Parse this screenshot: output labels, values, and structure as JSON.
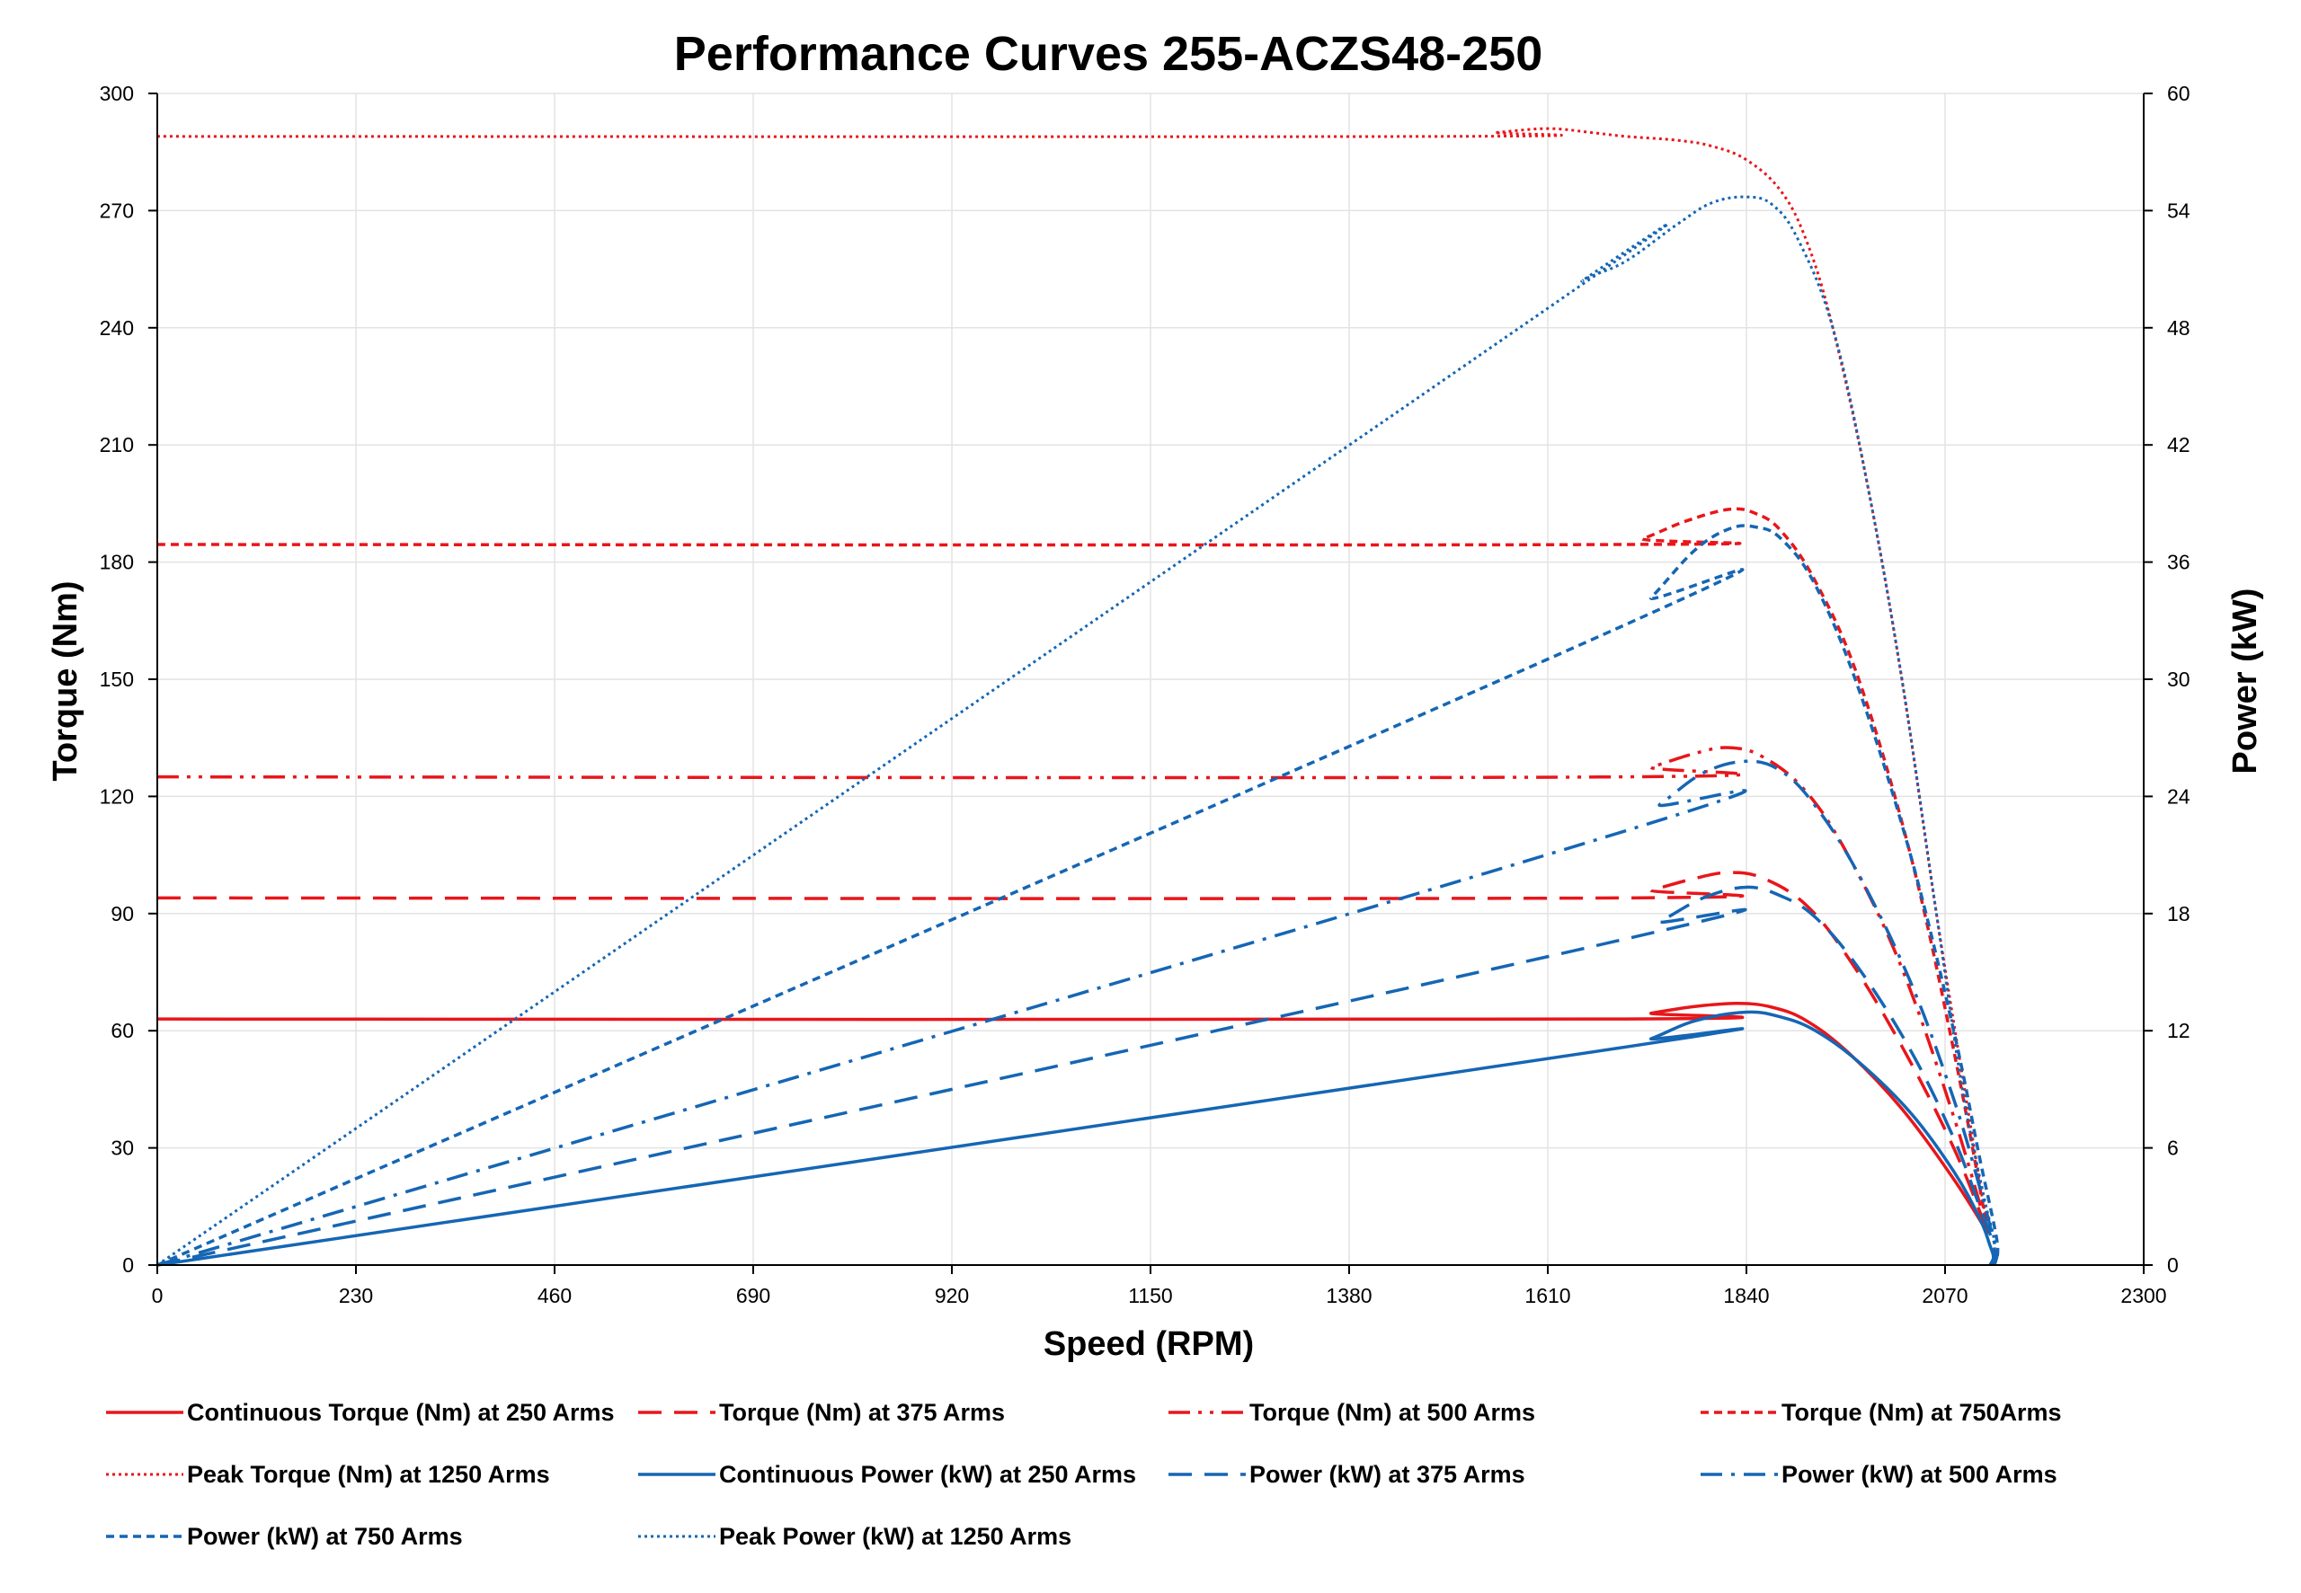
{
  "chart_data": {
    "type": "line",
    "title": "Performance Curves 255-ACZS48-250",
    "xlabel": "Speed (RPM)",
    "ylabel": "Torque (Nm)",
    "y2label": "Power (kW)",
    "xlim": [
      0,
      2300
    ],
    "ylim": [
      0,
      300
    ],
    "y2lim": [
      0,
      60
    ],
    "xticks": [
      0,
      230,
      460,
      690,
      920,
      1150,
      1380,
      1610,
      1840,
      2070,
      2300
    ],
    "yticks": [
      0,
      30,
      60,
      90,
      120,
      150,
      180,
      210,
      240,
      270,
      300
    ],
    "y2ticks": [
      0,
      6,
      12,
      18,
      24,
      30,
      36,
      42,
      48,
      54,
      60
    ],
    "grid": true,
    "legend_position": "bottom",
    "colors": {
      "torque": "#e8161b",
      "power": "#1566b4"
    },
    "series": [
      {
        "name": "Continuous Torque (Nm) at 250 Arms",
        "axis": "left",
        "color": "#e8161b",
        "dash": "solid",
        "points": [
          [
            0,
            63
          ],
          [
            1690,
            63
          ],
          [
            1730,
            64.5
          ],
          [
            1780,
            66.2
          ],
          [
            1830,
            67
          ],
          [
            1870,
            66
          ],
          [
            1910,
            62.5
          ],
          [
            1960,
            54
          ],
          [
            2020,
            40
          ],
          [
            2080,
            22
          ],
          [
            2120,
            8
          ]
        ]
      },
      {
        "name": "Torque (Nm) at 375 Arms",
        "axis": "left",
        "color": "#e8161b",
        "dash": "long",
        "points": [
          [
            0,
            94
          ],
          [
            1690,
            94
          ],
          [
            1730,
            96
          ],
          [
            1780,
            99
          ],
          [
            1820,
            100.5
          ],
          [
            1860,
            99
          ],
          [
            1910,
            92
          ],
          [
            1960,
            78
          ],
          [
            2020,
            56
          ],
          [
            2080,
            30
          ],
          [
            2120,
            8
          ]
        ]
      },
      {
        "name": "Torque (Nm) at 500 Arms",
        "axis": "left",
        "color": "#e8161b",
        "dash": "dashdotdot",
        "points": [
          [
            0,
            125
          ],
          [
            1690,
            125
          ],
          [
            1730,
            127.5
          ],
          [
            1780,
            131
          ],
          [
            1820,
            132.5
          ],
          [
            1860,
            130
          ],
          [
            1910,
            121
          ],
          [
            1960,
            104
          ],
          [
            2020,
            76
          ],
          [
            2080,
            38
          ],
          [
            2120,
            8
          ]
        ]
      },
      {
        "name": "Torque (Nm) at 750Arms",
        "axis": "left",
        "color": "#e8161b",
        "dash": "short",
        "points": [
          [
            0,
            184.5
          ],
          [
            1690,
            184.5
          ],
          [
            1720,
            186
          ],
          [
            1770,
            190.5
          ],
          [
            1820,
            193.5
          ],
          [
            1850,
            192.5
          ],
          [
            1880,
            188
          ],
          [
            1920,
            175
          ],
          [
            1970,
            150
          ],
          [
            2030,
            105
          ],
          [
            2080,
            55
          ],
          [
            2120,
            8
          ]
        ]
      },
      {
        "name": "Peak Torque (Nm) at 1250  Arms",
        "axis": "left",
        "color": "#e8161b",
        "dash": "dot",
        "points": [
          [
            0,
            289
          ],
          [
            1490,
            289
          ],
          [
            1550,
            290
          ],
          [
            1610,
            291
          ],
          [
            1660,
            290
          ],
          [
            1700,
            289
          ],
          [
            1760,
            288
          ],
          [
            1800,
            286.5
          ],
          [
            1840,
            283
          ],
          [
            1880,
            275
          ],
          [
            1910,
            262
          ],
          [
            1940,
            240
          ],
          [
            1980,
            200
          ],
          [
            2020,
            150
          ],
          [
            2060,
            90
          ],
          [
            2100,
            35
          ],
          [
            2120,
            8
          ]
        ]
      },
      {
        "name": "Continuous Power (kW) at 250 Arms",
        "axis": "right",
        "color": "#1566b4",
        "dash": "solid",
        "points": [
          [
            0,
            0
          ],
          [
            1690,
            11.1
          ],
          [
            1730,
            11.6
          ],
          [
            1780,
            12.5
          ],
          [
            1840,
            12.95
          ],
          [
            1880,
            12.7
          ],
          [
            1920,
            12.0
          ],
          [
            1970,
            10.4
          ],
          [
            2030,
            7.8
          ],
          [
            2080,
            4.8
          ],
          [
            2110,
            2.4
          ],
          [
            2122,
            1.0
          ],
          [
            2126,
            0.4
          ],
          [
            2122,
            0
          ]
        ]
      },
      {
        "name": "Power (kW) at 375 Arms",
        "axis": "right",
        "color": "#1566b4",
        "dash": "long",
        "points": [
          [
            0,
            0
          ],
          [
            1690,
            16.6
          ],
          [
            1740,
            17.6
          ],
          [
            1790,
            18.8
          ],
          [
            1840,
            19.35
          ],
          [
            1880,
            18.9
          ],
          [
            1920,
            17.8
          ],
          [
            1970,
            15.2
          ],
          [
            2030,
            11.0
          ],
          [
            2080,
            6.5
          ],
          [
            2110,
            3.0
          ],
          [
            2125,
            1.2
          ],
          [
            2128,
            0.4
          ],
          [
            2124,
            0
          ]
        ]
      },
      {
        "name": "Power (kW) at 500 Arms",
        "axis": "right",
        "color": "#1566b4",
        "dash": "dashdot",
        "points": [
          [
            0,
            0
          ],
          [
            1690,
            22.1
          ],
          [
            1740,
            23.6
          ],
          [
            1790,
            25.2
          ],
          [
            1840,
            25.8
          ],
          [
            1880,
            25.3
          ],
          [
            1920,
            23.5
          ],
          [
            1970,
            20.0
          ],
          [
            2030,
            14.5
          ],
          [
            2080,
            8.5
          ],
          [
            2110,
            4.0
          ],
          [
            2125,
            1.5
          ],
          [
            2130,
            0.5
          ],
          [
            2126,
            0
          ]
        ]
      },
      {
        "name": "Power (kW) at 750 Arms",
        "axis": "right",
        "color": "#1566b4",
        "dash": "short",
        "points": [
          [
            0,
            0
          ],
          [
            1690,
            32.6
          ],
          [
            1730,
            34.2
          ],
          [
            1780,
            36.6
          ],
          [
            1820,
            37.7
          ],
          [
            1850,
            37.8
          ],
          [
            1880,
            37.2
          ],
          [
            1920,
            34.8
          ],
          [
            1970,
            29.5
          ],
          [
            2030,
            21.0
          ],
          [
            2080,
            12.0
          ],
          [
            2110,
            5.5
          ],
          [
            2127,
            2.0
          ],
          [
            2131,
            0.7
          ],
          [
            2127,
            0
          ]
        ]
      },
      {
        "name": "Peak Power (kW) at 1250 Arms",
        "axis": "right",
        "color": "#1566b4",
        "dash": "dot",
        "points": [
          [
            0,
            0
          ],
          [
            1610,
            49
          ],
          [
            1650,
            50.4
          ],
          [
            1700,
            51.4
          ],
          [
            1760,
            53.3
          ],
          [
            1800,
            54.4
          ],
          [
            1840,
            54.7
          ],
          [
            1870,
            54.3
          ],
          [
            1900,
            52.5
          ],
          [
            1940,
            48
          ],
          [
            1980,
            40
          ],
          [
            2020,
            30
          ],
          [
            2060,
            18
          ],
          [
            2090,
            9
          ],
          [
            2115,
            3.5
          ],
          [
            2127,
            1.2
          ],
          [
            2124,
            0
          ]
        ]
      }
    ]
  }
}
